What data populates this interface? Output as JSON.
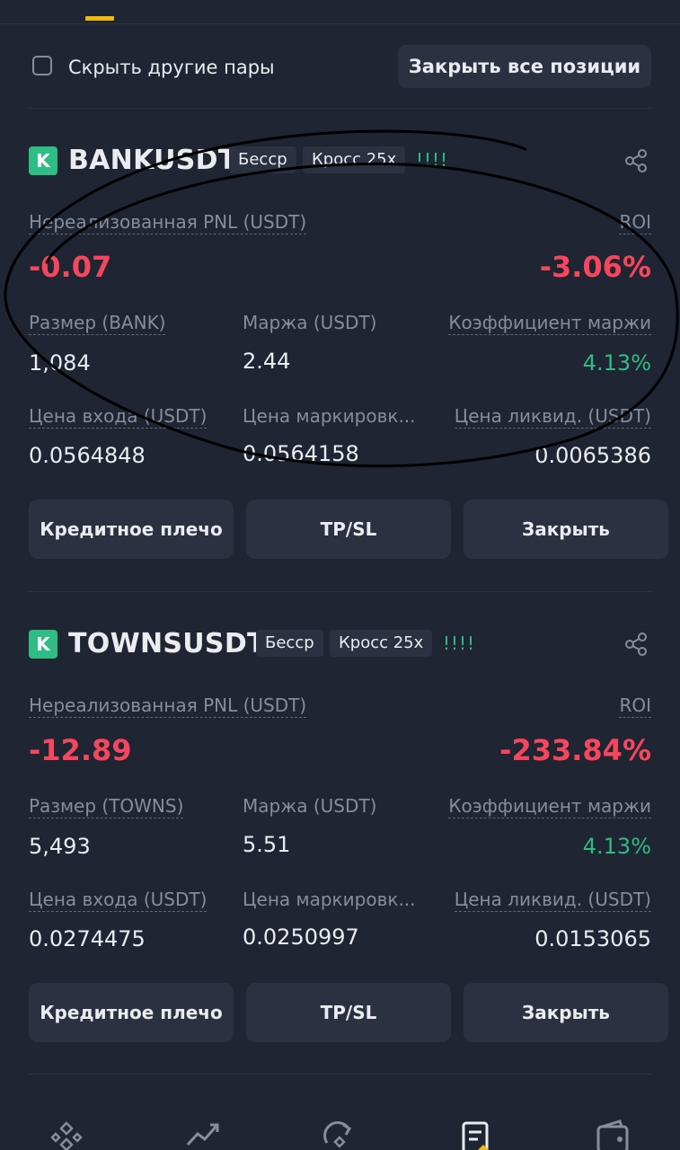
{
  "hide_other_pairs": {
    "label": "Скрыть другие пары",
    "checked": false
  },
  "close_all_button": "Закрыть все позиции",
  "positions": [
    {
      "badge": "K",
      "symbol": "BANKUSDT",
      "tag_margin_type": "Бесср",
      "tag_leverage": "Кросс 25x",
      "warning": "!!!!",
      "pnl_label": "Нереализованная PNL (USDT)",
      "pnl_value": "-0.07",
      "roi_label": "ROI",
      "roi_value": "-3.06%",
      "size_label": "Размер (BANK)",
      "size_value": "1,084",
      "margin_label": "Маржа (USDT)",
      "margin_value": "2.44",
      "ratio_label": "Коэффициент маржи",
      "ratio_value": "4.13%",
      "entry_label": "Цена входа (USDT)",
      "entry_value": "0.0564848",
      "mark_label": "Цена маркировк...",
      "mark_value": "0.0564158",
      "liq_label": "Цена ликвид. (USDT)",
      "liq_value": "0.0065386",
      "buttons": {
        "leverage": "Кредитное плечо",
        "tpsl": "TP/SL",
        "close": "Закрыть"
      }
    },
    {
      "badge": "K",
      "symbol": "TOWNSUSDT",
      "tag_margin_type": "Бесср",
      "tag_leverage": "Кросс 25x",
      "warning": "!!!!",
      "pnl_label": "Нереализованная PNL (USDT)",
      "pnl_value": "-12.89",
      "roi_label": "ROI",
      "roi_value": "-233.84%",
      "size_label": "Размер (TOWNS)",
      "size_value": "5,493",
      "margin_label": "Маржа (USDT)",
      "margin_value": "5.51",
      "ratio_label": "Коэффициент маржи",
      "ratio_value": "4.13%",
      "entry_label": "Цена входа (USDT)",
      "entry_value": "0.0274475",
      "mark_label": "Цена маркировк...",
      "mark_value": "0.0250997",
      "liq_label": "Цена ликвид. (USDT)",
      "liq_value": "0.0153065",
      "buttons": {
        "leverage": "Кредитное плечо",
        "tpsl": "TP/SL",
        "close": "Закрыть"
      }
    }
  ],
  "bottom_nav": [
    "home-icon",
    "markets-icon",
    "trade-icon",
    "futures-icon",
    "wallet-icon"
  ],
  "colors": {
    "background": "#1f2532",
    "negative": "#f6465d",
    "positive": "#2ebd85",
    "accent": "#f0b90b"
  }
}
